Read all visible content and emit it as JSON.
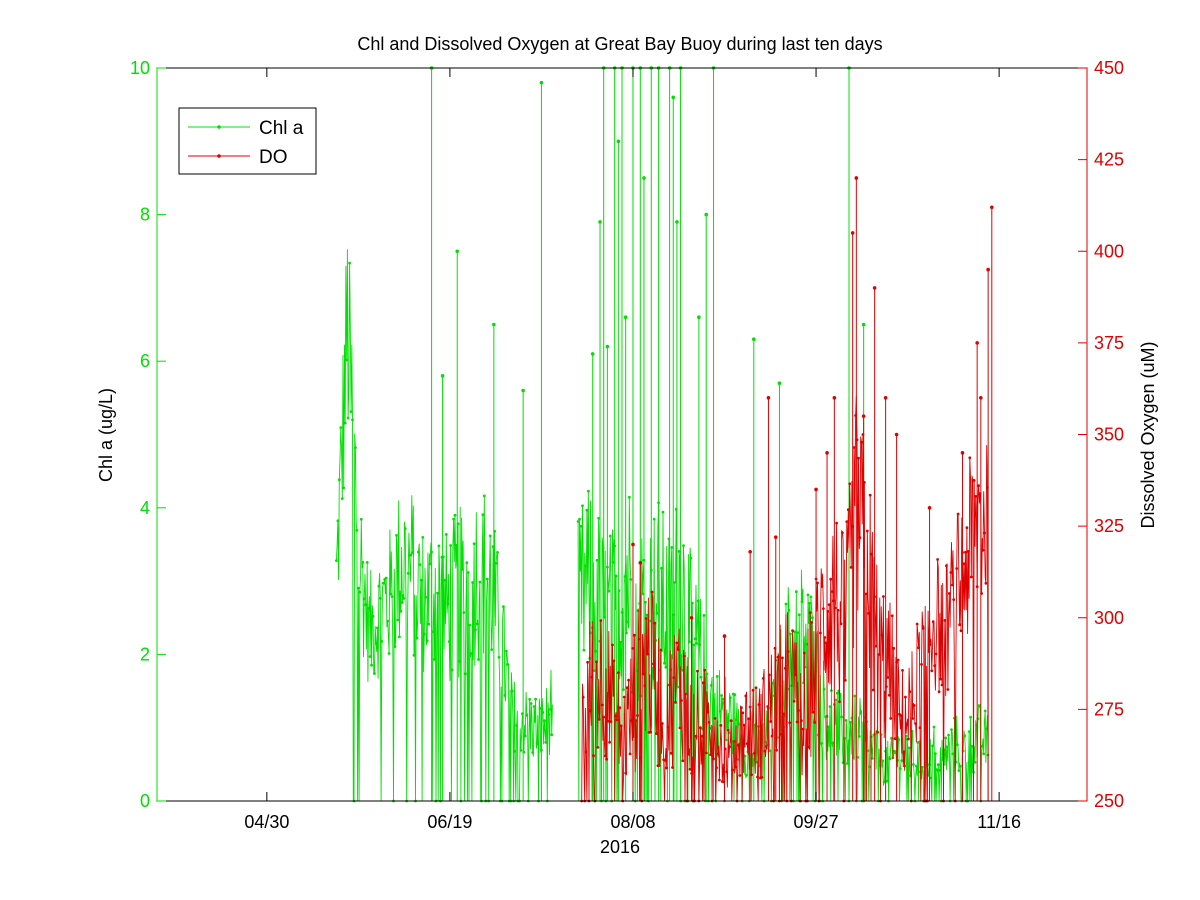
{
  "chart_data": {
    "type": "line",
    "title": "Chl and Dissolved Oxygen at Great Bay Buoy during last ten days",
    "xlabel": "2016",
    "ylabel_left": "Chl a (ug/L)",
    "ylabel_right": "Dissolved Oxygen (uM)",
    "x_ticks": [
      "04/30",
      "06/19",
      "08/08",
      "09/27",
      "11/16"
    ],
    "x_range": [
      "2016-03-31",
      "2016-12-10"
    ],
    "ylim_left": [
      0,
      10
    ],
    "ylim_right": [
      250,
      450
    ],
    "yticks_left": [
      "0",
      "2",
      "4",
      "6",
      "8",
      "10"
    ],
    "yticks_right": [
      "250",
      "275",
      "300",
      "325",
      "350",
      "375",
      "400",
      "425",
      "450"
    ],
    "grid": false,
    "legend_position": "top-left",
    "colors": {
      "chl": "#00e000",
      "do": "#e00000",
      "axis": "#000000"
    },
    "series": [
      {
        "name": "Chl a",
        "axis": "left",
        "x": [
          "2016-05-19",
          "2016-05-22",
          "2016-05-25",
          "2016-05-28",
          "2016-05-31",
          "2016-06-03",
          "2016-06-06",
          "2016-06-09",
          "2016-06-12",
          "2016-06-15",
          "2016-06-18",
          "2016-06-21",
          "2016-06-24",
          "2016-06-27",
          "2016-06-30",
          "2016-07-03",
          "2016-07-06",
          "2016-07-09",
          "2016-07-12",
          "2016-07-15",
          "2016-07-25",
          "2016-07-28",
          "2016-07-31",
          "2016-08-03",
          "2016-08-06",
          "2016-08-09",
          "2016-08-12",
          "2016-08-15",
          "2016-08-18",
          "2016-08-21",
          "2016-08-24",
          "2016-08-27",
          "2016-08-30",
          "2016-09-02",
          "2016-09-05",
          "2016-09-08",
          "2016-09-11",
          "2016-09-14",
          "2016-09-17",
          "2016-09-20",
          "2016-09-23",
          "2016-09-26",
          "2016-09-29",
          "2016-10-02",
          "2016-10-05",
          "2016-10-08",
          "2016-10-11",
          "2016-10-14",
          "2016-10-17",
          "2016-10-20",
          "2016-10-23",
          "2016-10-26",
          "2016-10-29",
          "2016-11-01",
          "2016-11-04",
          "2016-11-07",
          "2016-11-10",
          "2016-11-13"
        ],
        "y": [
          3.0,
          6.5,
          3.5,
          2.3,
          2.6,
          2.8,
          3.3,
          3.1,
          2.7,
          2.9,
          2.6,
          2.8,
          2.9,
          3.2,
          3.0,
          2.2,
          1.2,
          1.1,
          1.0,
          1.0,
          2.8,
          3.0,
          2.4,
          2.5,
          3.1,
          2.7,
          2.6,
          2.8,
          2.5,
          3.0,
          2.2,
          1.8,
          1.3,
          1.2,
          1.0,
          0.6,
          0.7,
          0.9,
          1.5,
          2.2,
          2.3,
          2.0,
          1.3,
          1.0,
          0.9,
          1.0,
          0.8,
          0.6,
          0.5,
          0.7,
          0.6,
          0.5,
          0.7,
          0.6,
          0.8,
          0.7,
          0.9,
          0.8
        ],
        "y_spread": [
          0.9,
          1.6,
          1.2,
          0.8,
          0.9,
          1.0,
          1.2,
          1.2,
          1.0,
          1.1,
          1.1,
          1.2,
          1.2,
          1.3,
          1.2,
          0.9,
          0.5,
          0.5,
          0.5,
          0.5,
          1.3,
          1.4,
          1.3,
          1.3,
          1.6,
          1.4,
          1.3,
          1.4,
          1.2,
          1.5,
          1.1,
          0.9,
          0.7,
          0.6,
          0.5,
          0.3,
          0.4,
          0.4,
          0.8,
          1.0,
          1.0,
          0.9,
          0.7,
          0.6,
          0.5,
          0.5,
          0.4,
          0.4,
          0.3,
          0.4,
          0.4,
          0.3,
          0.4,
          0.3,
          0.4,
          0.4,
          0.5,
          0.4
        ],
        "spikes": [
          [
            "2016-06-14",
            10
          ],
          [
            "2016-06-17",
            5.8
          ],
          [
            "2016-06-21",
            7.5
          ],
          [
            "2016-07-01",
            6.5
          ],
          [
            "2016-07-09",
            5.6
          ],
          [
            "2016-07-14",
            9.8
          ],
          [
            "2016-07-28",
            6.1
          ],
          [
            "2016-07-30",
            7.9
          ],
          [
            "2016-07-31",
            10
          ],
          [
            "2016-08-01",
            6.2
          ],
          [
            "2016-08-03",
            10
          ],
          [
            "2016-08-04",
            9.0
          ],
          [
            "2016-08-05",
            10
          ],
          [
            "2016-08-06",
            6.6
          ],
          [
            "2016-08-08",
            10
          ],
          [
            "2016-08-10",
            10
          ],
          [
            "2016-08-11",
            8.5
          ],
          [
            "2016-08-13",
            10
          ],
          [
            "2016-08-15",
            10
          ],
          [
            "2016-08-18",
            10
          ],
          [
            "2016-08-19",
            9.6
          ],
          [
            "2016-08-20",
            7.9
          ],
          [
            "2016-08-21",
            10
          ],
          [
            "2016-08-26",
            6.6
          ],
          [
            "2016-08-28",
            8.0
          ],
          [
            "2016-08-30",
            10
          ],
          [
            "2016-09-10",
            6.3
          ],
          [
            "2016-09-17",
            5.7
          ],
          [
            "2016-10-06",
            10
          ],
          [
            "2016-10-10",
            6.5
          ]
        ]
      },
      {
        "name": "DO",
        "axis": "right",
        "x": [
          "2016-07-25",
          "2016-07-28",
          "2016-07-31",
          "2016-08-03",
          "2016-08-06",
          "2016-08-09",
          "2016-08-12",
          "2016-08-15",
          "2016-08-18",
          "2016-08-21",
          "2016-08-24",
          "2016-08-27",
          "2016-08-30",
          "2016-09-02",
          "2016-09-05",
          "2016-09-08",
          "2016-09-11",
          "2016-09-14",
          "2016-09-17",
          "2016-09-20",
          "2016-09-23",
          "2016-09-26",
          "2016-09-29",
          "2016-10-02",
          "2016-10-05",
          "2016-10-08",
          "2016-10-11",
          "2016-10-14",
          "2016-10-17",
          "2016-10-20",
          "2016-10-23",
          "2016-10-26",
          "2016-10-29",
          "2016-11-01",
          "2016-11-04",
          "2016-11-07",
          "2016-11-10",
          "2016-11-13"
        ],
        "y": [
          275,
          282,
          285,
          272,
          268,
          280,
          290,
          278,
          276,
          284,
          270,
          272,
          274,
          260,
          265,
          270,
          268,
          275,
          280,
          285,
          270,
          285,
          300,
          305,
          295,
          330,
          315,
          290,
          285,
          270,
          275,
          290,
          300,
          295,
          305,
          315,
          325,
          330
        ],
        "y_spread": [
          18,
          22,
          22,
          18,
          16,
          22,
          24,
          20,
          18,
          22,
          16,
          14,
          14,
          8,
          10,
          14,
          14,
          16,
          18,
          20,
          16,
          22,
          26,
          28,
          26,
          32,
          30,
          24,
          22,
          16,
          16,
          18,
          20,
          18,
          22,
          24,
          28,
          30
        ],
        "spikes": [
          [
            "2016-08-08",
            320
          ],
          [
            "2016-08-10",
            315
          ],
          [
            "2016-08-24",
            300
          ],
          [
            "2016-09-02",
            295
          ],
          [
            "2016-09-09",
            318
          ],
          [
            "2016-09-14",
            360
          ],
          [
            "2016-09-16",
            322
          ],
          [
            "2016-09-27",
            335
          ],
          [
            "2016-09-30",
            345
          ],
          [
            "2016-10-02",
            360
          ],
          [
            "2016-10-07",
            405
          ],
          [
            "2016-10-08",
            420
          ],
          [
            "2016-10-10",
            355
          ],
          [
            "2016-10-13",
            390
          ],
          [
            "2016-10-16",
            360
          ],
          [
            "2016-10-19",
            350
          ],
          [
            "2016-10-28",
            330
          ],
          [
            "2016-11-06",
            345
          ],
          [
            "2016-11-10",
            375
          ],
          [
            "2016-11-11",
            360
          ],
          [
            "2016-11-13",
            395
          ],
          [
            "2016-11-14",
            412
          ]
        ]
      }
    ]
  }
}
